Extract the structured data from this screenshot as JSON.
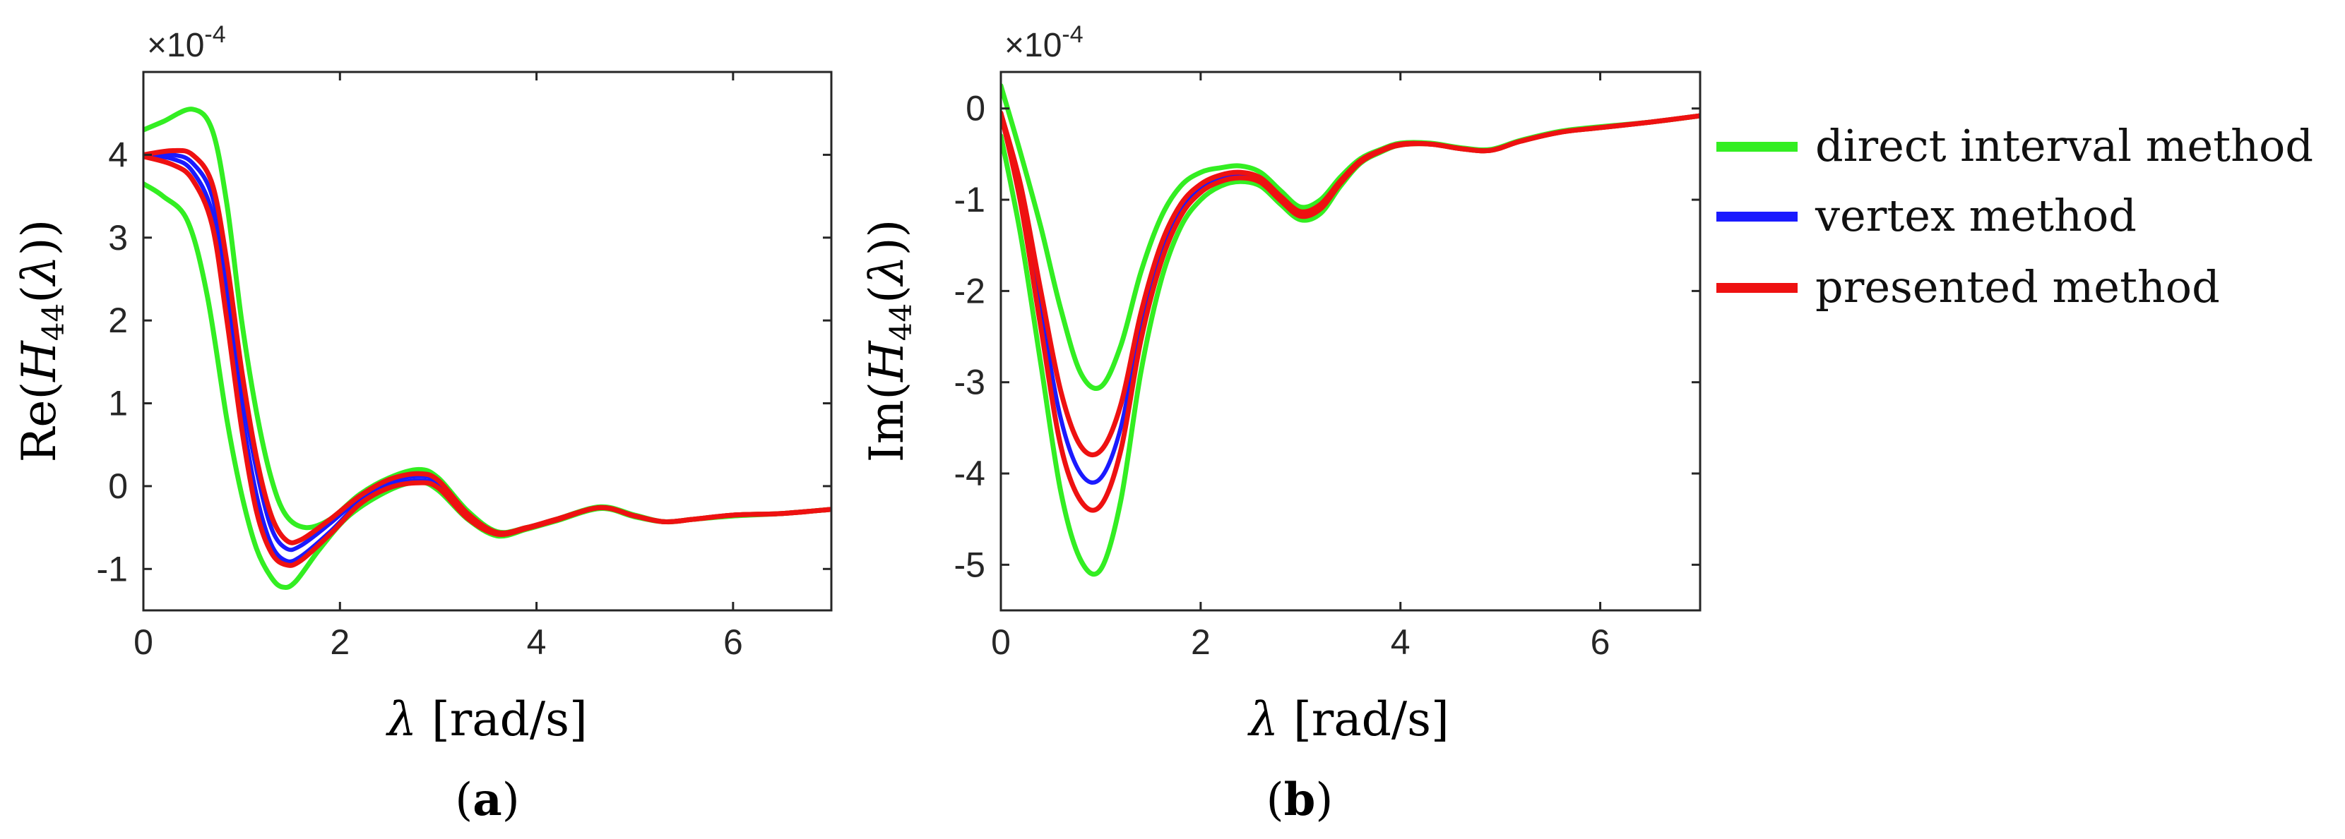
{
  "chart_data": [
    {
      "type": "line",
      "panel": "a",
      "panel_label": "a",
      "ylabel": {
        "prefix": "Re(",
        "var": "H",
        "sub": "44",
        "arg": "λ",
        "suffix": ")"
      },
      "xlabel": {
        "sym": "λ",
        "unit": " [rad/s]"
      },
      "exponent_label": {
        "base": "×10",
        "power": "-4"
      },
      "xlim": [
        0,
        7
      ],
      "ylim": [
        -1.5,
        5
      ],
      "xticks": [
        0,
        2,
        4,
        6
      ],
      "yticks": [
        -1,
        0,
        1,
        2,
        3,
        4
      ],
      "grid": false,
      "series": [
        {
          "key": "direct_upper",
          "color": "#33ee22",
          "width": 7,
          "x": [
            0,
            0.2,
            0.5,
            0.7,
            0.85,
            1.0,
            1.15,
            1.3,
            1.45,
            1.65,
            1.9,
            2.2,
            2.5,
            2.8,
            3.0,
            3.3,
            3.6,
            3.9,
            4.2,
            4.65,
            5.0,
            5.3,
            5.6,
            6.0,
            6.5,
            7.0
          ],
          "y": [
            4.3,
            4.4,
            4.55,
            4.3,
            3.4,
            2.0,
            0.9,
            0.1,
            -0.35,
            -0.5,
            -0.4,
            -0.1,
            0.1,
            0.2,
            0.1,
            -0.3,
            -0.55,
            -0.5,
            -0.4,
            -0.25,
            -0.35,
            -0.43,
            -0.4,
            -0.35,
            -0.33,
            -0.28
          ]
        },
        {
          "key": "direct_lower",
          "color": "#33ee22",
          "width": 7,
          "x": [
            0,
            0.2,
            0.45,
            0.65,
            0.85,
            1.0,
            1.15,
            1.3,
            1.42,
            1.55,
            1.8,
            2.1,
            2.5,
            2.8,
            3.0,
            3.3,
            3.6,
            3.9,
            4.2,
            4.65,
            5.0,
            5.3,
            5.6,
            6.0,
            6.5,
            7.0
          ],
          "y": [
            3.65,
            3.5,
            3.2,
            2.3,
            0.8,
            -0.1,
            -0.75,
            -1.1,
            -1.22,
            -1.15,
            -0.75,
            -0.35,
            -0.05,
            0.05,
            -0.05,
            -0.4,
            -0.6,
            -0.52,
            -0.42,
            -0.27,
            -0.37,
            -0.43,
            -0.4,
            -0.36,
            -0.33,
            -0.28
          ]
        },
        {
          "key": "vertex_upper",
          "color": "#1a1aff",
          "width": 6,
          "x": [
            0,
            0.3,
            0.5,
            0.7,
            0.85,
            1.0,
            1.15,
            1.3,
            1.45,
            1.6,
            1.9,
            2.2,
            2.5,
            2.8,
            3.0,
            3.3,
            3.6,
            3.9,
            4.2,
            4.65,
            5.0,
            5.3,
            5.6,
            6.0,
            6.5,
            7.0
          ],
          "y": [
            4.0,
            4.0,
            3.9,
            3.5,
            2.5,
            1.2,
            0.2,
            -0.5,
            -0.75,
            -0.72,
            -0.45,
            -0.15,
            0.05,
            0.12,
            0.05,
            -0.35,
            -0.57,
            -0.5,
            -0.41,
            -0.26,
            -0.36,
            -0.43,
            -0.4,
            -0.35,
            -0.33,
            -0.28
          ]
        },
        {
          "key": "vertex_lower",
          "color": "#1a1aff",
          "width": 6,
          "x": [
            0,
            0.3,
            0.5,
            0.7,
            0.85,
            1.0,
            1.15,
            1.3,
            1.45,
            1.6,
            1.9,
            2.2,
            2.5,
            2.8,
            3.0,
            3.3,
            3.6,
            3.9,
            4.2,
            4.65,
            5.0,
            5.3,
            5.6,
            6.0,
            6.5,
            7.0
          ],
          "y": [
            4.0,
            3.95,
            3.8,
            3.3,
            2.2,
            0.9,
            -0.1,
            -0.7,
            -0.9,
            -0.85,
            -0.55,
            -0.2,
            0.0,
            0.07,
            0.0,
            -0.38,
            -0.58,
            -0.51,
            -0.41,
            -0.26,
            -0.36,
            -0.43,
            -0.4,
            -0.35,
            -0.33,
            -0.28
          ]
        },
        {
          "key": "presented_upper",
          "color": "#ee1111",
          "width": 7,
          "x": [
            0,
            0.3,
            0.5,
            0.7,
            0.85,
            1.0,
            1.15,
            1.3,
            1.45,
            1.6,
            1.9,
            2.2,
            2.5,
            2.8,
            3.0,
            3.3,
            3.6,
            3.9,
            4.2,
            4.65,
            5.0,
            5.3,
            5.6,
            6.0,
            6.5,
            7.0
          ],
          "y": [
            4.0,
            4.05,
            4.0,
            3.65,
            2.7,
            1.4,
            0.35,
            -0.35,
            -0.65,
            -0.65,
            -0.4,
            -0.12,
            0.08,
            0.15,
            0.07,
            -0.33,
            -0.56,
            -0.5,
            -0.4,
            -0.26,
            -0.36,
            -0.43,
            -0.4,
            -0.35,
            -0.33,
            -0.28
          ]
        },
        {
          "key": "presented_lower",
          "color": "#ee1111",
          "width": 7,
          "x": [
            0,
            0.3,
            0.5,
            0.7,
            0.85,
            1.0,
            1.15,
            1.3,
            1.45,
            1.6,
            1.9,
            2.2,
            2.5,
            2.8,
            3.0,
            3.3,
            3.6,
            3.9,
            4.2,
            4.65,
            5.0,
            5.3,
            5.6,
            6.0,
            6.5,
            7.0
          ],
          "y": [
            3.98,
            3.88,
            3.7,
            3.15,
            2.0,
            0.7,
            -0.3,
            -0.8,
            -0.95,
            -0.9,
            -0.58,
            -0.22,
            -0.02,
            0.04,
            -0.02,
            -0.39,
            -0.58,
            -0.51,
            -0.41,
            -0.26,
            -0.36,
            -0.43,
            -0.4,
            -0.35,
            -0.33,
            -0.28
          ]
        }
      ]
    },
    {
      "type": "line",
      "panel": "b",
      "panel_label": "b",
      "ylabel": {
        "prefix": "Im(",
        "var": "H",
        "sub": "44",
        "arg": "λ",
        "suffix": ")"
      },
      "xlabel": {
        "sym": "λ",
        "unit": " [rad/s]"
      },
      "exponent_label": {
        "base": "×10",
        "power": "-4"
      },
      "xlim": [
        0,
        7
      ],
      "ylim": [
        -5.5,
        0.4
      ],
      "xticks": [
        0,
        2,
        4,
        6
      ],
      "yticks": [
        -5,
        -4,
        -3,
        -2,
        -1,
        0
      ],
      "grid": false,
      "series": [
        {
          "key": "direct_upper",
          "color": "#33ee22",
          "width": 7,
          "x": [
            0,
            0.2,
            0.4,
            0.6,
            0.8,
            1.0,
            1.2,
            1.4,
            1.6,
            1.8,
            2.0,
            2.2,
            2.4,
            2.6,
            2.8,
            3.0,
            3.2,
            3.4,
            3.6,
            3.8,
            4.0,
            4.3,
            4.6,
            4.9,
            5.2,
            5.6,
            6.0,
            6.5,
            7.0
          ],
          "y": [
            0.25,
            -0.5,
            -1.3,
            -2.2,
            -2.9,
            -3.05,
            -2.6,
            -1.8,
            -1.2,
            -0.85,
            -0.7,
            -0.65,
            -0.63,
            -0.7,
            -0.9,
            -1.08,
            -1.0,
            -0.75,
            -0.55,
            -0.45,
            -0.38,
            -0.38,
            -0.43,
            -0.45,
            -0.35,
            -0.25,
            -0.2,
            -0.15,
            -0.08
          ]
        },
        {
          "key": "direct_lower",
          "color": "#33ee22",
          "width": 7,
          "x": [
            0,
            0.2,
            0.4,
            0.6,
            0.8,
            1.0,
            1.2,
            1.4,
            1.6,
            1.8,
            2.0,
            2.2,
            2.4,
            2.6,
            2.8,
            3.0,
            3.2,
            3.4,
            3.6,
            3.8,
            4.0,
            4.3,
            4.6,
            4.9,
            5.2,
            5.6,
            6.0,
            6.5,
            7.0
          ],
          "y": [
            -0.3,
            -1.4,
            -2.8,
            -4.2,
            -4.95,
            -5.05,
            -4.3,
            -2.9,
            -1.9,
            -1.3,
            -1.0,
            -0.85,
            -0.8,
            -0.85,
            -1.05,
            -1.22,
            -1.15,
            -0.85,
            -0.6,
            -0.48,
            -0.4,
            -0.39,
            -0.44,
            -0.46,
            -0.36,
            -0.26,
            -0.21,
            -0.15,
            -0.08
          ]
        },
        {
          "key": "vertex_lower",
          "color": "#1a1aff",
          "width": 6,
          "x": [
            0,
            0.2,
            0.4,
            0.6,
            0.8,
            1.0,
            1.2,
            1.4,
            1.6,
            1.8,
            2.0,
            2.2,
            2.4,
            2.6,
            2.8,
            3.0,
            3.2,
            3.4,
            3.6,
            3.8,
            4.0,
            4.3,
            4.6,
            4.9,
            5.2,
            5.6,
            6.0,
            6.5,
            7.0
          ],
          "y": [
            -0.05,
            -0.95,
            -2.2,
            -3.4,
            -4.0,
            -4.05,
            -3.5,
            -2.4,
            -1.6,
            -1.1,
            -0.87,
            -0.77,
            -0.73,
            -0.78,
            -0.98,
            -1.15,
            -1.07,
            -0.8,
            -0.58,
            -0.47,
            -0.39,
            -0.39,
            -0.44,
            -0.46,
            -0.36,
            -0.26,
            -0.21,
            -0.15,
            -0.08
          ]
        },
        {
          "key": "presented_upper",
          "color": "#ee1111",
          "width": 7,
          "x": [
            0,
            0.2,
            0.4,
            0.6,
            0.8,
            1.0,
            1.2,
            1.4,
            1.6,
            1.8,
            2.0,
            2.2,
            2.4,
            2.6,
            2.8,
            3.0,
            3.2,
            3.4,
            3.6,
            3.8,
            4.0,
            4.3,
            4.6,
            4.9,
            5.2,
            5.6,
            6.0,
            6.5,
            7.0
          ],
          "y": [
            -0.05,
            -0.85,
            -2.0,
            -3.1,
            -3.7,
            -3.75,
            -3.25,
            -2.25,
            -1.5,
            -1.05,
            -0.83,
            -0.73,
            -0.7,
            -0.76,
            -0.96,
            -1.13,
            -1.05,
            -0.79,
            -0.57,
            -0.46,
            -0.39,
            -0.39,
            -0.44,
            -0.46,
            -0.36,
            -0.26,
            -0.21,
            -0.15,
            -0.08
          ]
        },
        {
          "key": "presented_lower",
          "color": "#ee1111",
          "width": 7,
          "x": [
            0,
            0.2,
            0.4,
            0.6,
            0.8,
            1.0,
            1.2,
            1.4,
            1.6,
            1.8,
            2.0,
            2.2,
            2.4,
            2.6,
            2.8,
            3.0,
            3.2,
            3.4,
            3.6,
            3.8,
            4.0,
            4.3,
            4.6,
            4.9,
            5.2,
            5.6,
            6.0,
            6.5,
            7.0
          ],
          "y": [
            -0.05,
            -1.05,
            -2.4,
            -3.7,
            -4.3,
            -4.35,
            -3.75,
            -2.55,
            -1.7,
            -1.18,
            -0.92,
            -0.8,
            -0.76,
            -0.81,
            -1.01,
            -1.18,
            -1.1,
            -0.82,
            -0.59,
            -0.47,
            -0.4,
            -0.39,
            -0.44,
            -0.46,
            -0.36,
            -0.26,
            -0.21,
            -0.15,
            -0.08
          ]
        }
      ]
    }
  ],
  "legend": {
    "placement": "right",
    "entries": [
      {
        "label": "direct interval method",
        "color": "#33ee22"
      },
      {
        "label": "vertex method",
        "color": "#1a1aff"
      },
      {
        "label": "presented method",
        "color": "#ee1111"
      }
    ]
  }
}
